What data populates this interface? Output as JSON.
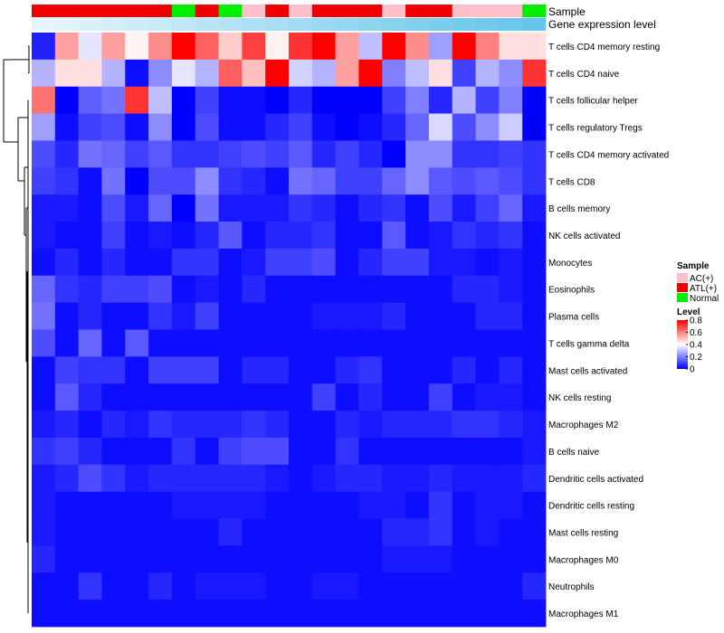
{
  "chart_data": {
    "type": "heatmap",
    "annotation_tracks": {
      "sample_label": "Sample",
      "expression_label": "Gene expression level",
      "sample_groups": [
        "ATL(+)",
        "ATL(+)",
        "ATL(+)",
        "ATL(+)",
        "ATL(+)",
        "ATL(+)",
        "Normal",
        "ATL(+)",
        "Normal",
        "AC(+)",
        "ATL(+)",
        "AC(+)",
        "ATL(+)",
        "ATL(+)",
        "ATL(+)",
        "AC(+)",
        "ATL(+)",
        "ATL(+)",
        "AC(+)",
        "AC(+)",
        "AC(+)",
        "Normal"
      ],
      "expression_level": [
        0.02,
        0.05,
        0.1,
        0.15,
        0.2,
        0.25,
        0.3,
        0.35,
        0.4,
        0.45,
        0.5,
        0.55,
        0.6,
        0.65,
        0.7,
        0.75,
        0.8,
        0.85,
        0.88,
        0.92,
        0.96,
        1.0
      ]
    },
    "rows": [
      "T cells CD4 memory resting",
      "T cells CD4 naive",
      "T cells follicular helper",
      "T cells regulatory  Tregs",
      "T cells CD4 memory activated",
      "T cells CD8",
      "B cells memory",
      "NK cells activated",
      "Monocytes",
      "Eosinophils",
      "Plasma cells",
      "T cells gamma delta",
      "Mast cells activated",
      "NK cells resting",
      "Macrophages M2",
      "B cells naive",
      "Dendritic cells activated",
      "Dendritic cells resting",
      "Mast cells resting",
      "Macrophages M0",
      "Neutrophils",
      "Macrophages M1"
    ],
    "values": [
      [
        0.05,
        0.55,
        0.36,
        0.55,
        0.42,
        0.58,
        0.8,
        0.65,
        0.48,
        0.7,
        0.42,
        0.72,
        0.8,
        0.55,
        0.3,
        0.8,
        0.58,
        0.25,
        0.8,
        0.6,
        0.45,
        0.45
      ],
      [
        0.28,
        0.45,
        0.45,
        0.28,
        0.02,
        0.22,
        0.36,
        0.28,
        0.65,
        0.5,
        0.8,
        0.33,
        0.28,
        0.55,
        0.8,
        0.2,
        0.3,
        0.45,
        0.1,
        0.28,
        0.22,
        0.72
      ],
      [
        0.62,
        0.0,
        0.15,
        0.18,
        0.72,
        0.3,
        0.0,
        0.1,
        0.02,
        0.02,
        0.0,
        0.06,
        0.0,
        0.0,
        0.0,
        0.1,
        0.2,
        0.06,
        0.28,
        0.1,
        0.2,
        0.0
      ],
      [
        0.25,
        0.02,
        0.1,
        0.12,
        0.02,
        0.22,
        0.0,
        0.12,
        0.02,
        0.02,
        0.06,
        0.1,
        0.02,
        0.0,
        0.02,
        0.06,
        0.16,
        0.34,
        0.12,
        0.22,
        0.32,
        0.0
      ],
      [
        0.12,
        0.06,
        0.18,
        0.16,
        0.1,
        0.14,
        0.08,
        0.08,
        0.1,
        0.12,
        0.1,
        0.14,
        0.06,
        0.1,
        0.06,
        0.0,
        0.22,
        0.22,
        0.08,
        0.08,
        0.1,
        0.08
      ],
      [
        0.1,
        0.08,
        0.02,
        0.18,
        0.0,
        0.12,
        0.12,
        0.22,
        0.08,
        0.06,
        0.02,
        0.18,
        0.16,
        0.1,
        0.1,
        0.16,
        0.22,
        0.14,
        0.12,
        0.14,
        0.12,
        0.08
      ],
      [
        0.04,
        0.04,
        0.02,
        0.12,
        0.04,
        0.16,
        0.0,
        0.18,
        0.04,
        0.04,
        0.04,
        0.08,
        0.06,
        0.02,
        0.06,
        0.08,
        0.02,
        0.12,
        0.04,
        0.1,
        0.16,
        0.04
      ],
      [
        0.04,
        0.02,
        0.02,
        0.1,
        0.02,
        0.04,
        0.02,
        0.06,
        0.14,
        0.02,
        0.06,
        0.06,
        0.08,
        0.02,
        0.02,
        0.14,
        0.02,
        0.04,
        0.08,
        0.06,
        0.08,
        0.02
      ],
      [
        0.02,
        0.06,
        0.02,
        0.06,
        0.02,
        0.02,
        0.08,
        0.08,
        0.02,
        0.04,
        0.1,
        0.1,
        0.12,
        0.02,
        0.06,
        0.1,
        0.1,
        0.04,
        0.04,
        0.02,
        0.04,
        0.02
      ],
      [
        0.16,
        0.08,
        0.06,
        0.1,
        0.1,
        0.12,
        0.02,
        0.04,
        0.02,
        0.06,
        0.02,
        0.02,
        0.02,
        0.02,
        0.02,
        0.02,
        0.02,
        0.02,
        0.06,
        0.06,
        0.04,
        0.02
      ],
      [
        0.18,
        0.02,
        0.06,
        0.02,
        0.02,
        0.08,
        0.04,
        0.1,
        0.02,
        0.02,
        0.02,
        0.02,
        0.04,
        0.04,
        0.04,
        0.06,
        0.02,
        0.02,
        0.02,
        0.06,
        0.06,
        0.02
      ],
      [
        0.12,
        0.02,
        0.16,
        0.02,
        0.14,
        0.02,
        0.02,
        0.02,
        0.02,
        0.02,
        0.02,
        0.02,
        0.02,
        0.02,
        0.02,
        0.02,
        0.02,
        0.02,
        0.02,
        0.02,
        0.02,
        0.02
      ],
      [
        0.02,
        0.1,
        0.08,
        0.08,
        0.02,
        0.1,
        0.1,
        0.1,
        0.02,
        0.06,
        0.06,
        0.02,
        0.02,
        0.06,
        0.08,
        0.02,
        0.02,
        0.02,
        0.06,
        0.02,
        0.06,
        0.02
      ],
      [
        0.02,
        0.14,
        0.06,
        0.02,
        0.02,
        0.02,
        0.02,
        0.02,
        0.02,
        0.02,
        0.02,
        0.02,
        0.1,
        0.02,
        0.06,
        0.02,
        0.02,
        0.1,
        0.02,
        0.04,
        0.04,
        0.02
      ],
      [
        0.04,
        0.06,
        0.02,
        0.06,
        0.04,
        0.08,
        0.06,
        0.06,
        0.06,
        0.08,
        0.06,
        0.02,
        0.02,
        0.06,
        0.04,
        0.06,
        0.06,
        0.06,
        0.08,
        0.08,
        0.06,
        0.04
      ],
      [
        0.08,
        0.1,
        0.06,
        0.02,
        0.02,
        0.02,
        0.08,
        0.02,
        0.1,
        0.12,
        0.12,
        0.02,
        0.02,
        0.08,
        0.02,
        0.02,
        0.02,
        0.02,
        0.02,
        0.02,
        0.02,
        0.04
      ],
      [
        0.04,
        0.06,
        0.12,
        0.08,
        0.04,
        0.06,
        0.06,
        0.06,
        0.06,
        0.06,
        0.04,
        0.02,
        0.04,
        0.06,
        0.06,
        0.04,
        0.04,
        0.06,
        0.04,
        0.04,
        0.04,
        0.06
      ],
      [
        0.04,
        0.02,
        0.02,
        0.02,
        0.02,
        0.02,
        0.04,
        0.04,
        0.04,
        0.04,
        0.02,
        0.02,
        0.02,
        0.02,
        0.04,
        0.04,
        0.02,
        0.08,
        0.02,
        0.04,
        0.04,
        0.02
      ],
      [
        0.04,
        0.02,
        0.02,
        0.02,
        0.02,
        0.02,
        0.02,
        0.02,
        0.06,
        0.02,
        0.02,
        0.02,
        0.02,
        0.02,
        0.02,
        0.06,
        0.06,
        0.08,
        0.02,
        0.04,
        0.02,
        0.02
      ],
      [
        0.06,
        0.02,
        0.02,
        0.02,
        0.02,
        0.02,
        0.02,
        0.02,
        0.02,
        0.02,
        0.02,
        0.02,
        0.02,
        0.02,
        0.02,
        0.04,
        0.04,
        0.04,
        0.02,
        0.02,
        0.02,
        0.02
      ],
      [
        0.02,
        0.02,
        0.08,
        0.02,
        0.02,
        0.06,
        0.02,
        0.04,
        0.04,
        0.04,
        0.02,
        0.02,
        0.04,
        0.04,
        0.02,
        0.02,
        0.02,
        0.02,
        0.02,
        0.02,
        0.02,
        0.06
      ],
      [
        0.02,
        0.02,
        0.02,
        0.02,
        0.02,
        0.02,
        0.02,
        0.02,
        0.02,
        0.02,
        0.02,
        0.02,
        0.02,
        0.02,
        0.02,
        0.02,
        0.02,
        0.02,
        0.02,
        0.02,
        0.02,
        0.02
      ]
    ],
    "legend": {
      "sample_title": "Sample",
      "sample_entries": [
        {
          "label": "AC(+)",
          "color": "#ffc0cb"
        },
        {
          "label": "ATL(+)",
          "color": "#ee0000"
        },
        {
          "label": "Normal",
          "color": "#00ee00"
        }
      ],
      "level_title": "Level",
      "level_ticks": [
        "0.8",
        "0.6",
        "0.4",
        "0.2",
        "0"
      ],
      "level_tick_values": [
        0.8,
        0.6,
        0.4,
        0.2,
        0
      ],
      "range": [
        0,
        0.8
      ]
    },
    "colors": {
      "low": "#0000ff",
      "mid": "#ffffff",
      "high": "#ff0000",
      "expr_low": "#e8f6fb",
      "expr_high": "#66c6ea"
    }
  }
}
